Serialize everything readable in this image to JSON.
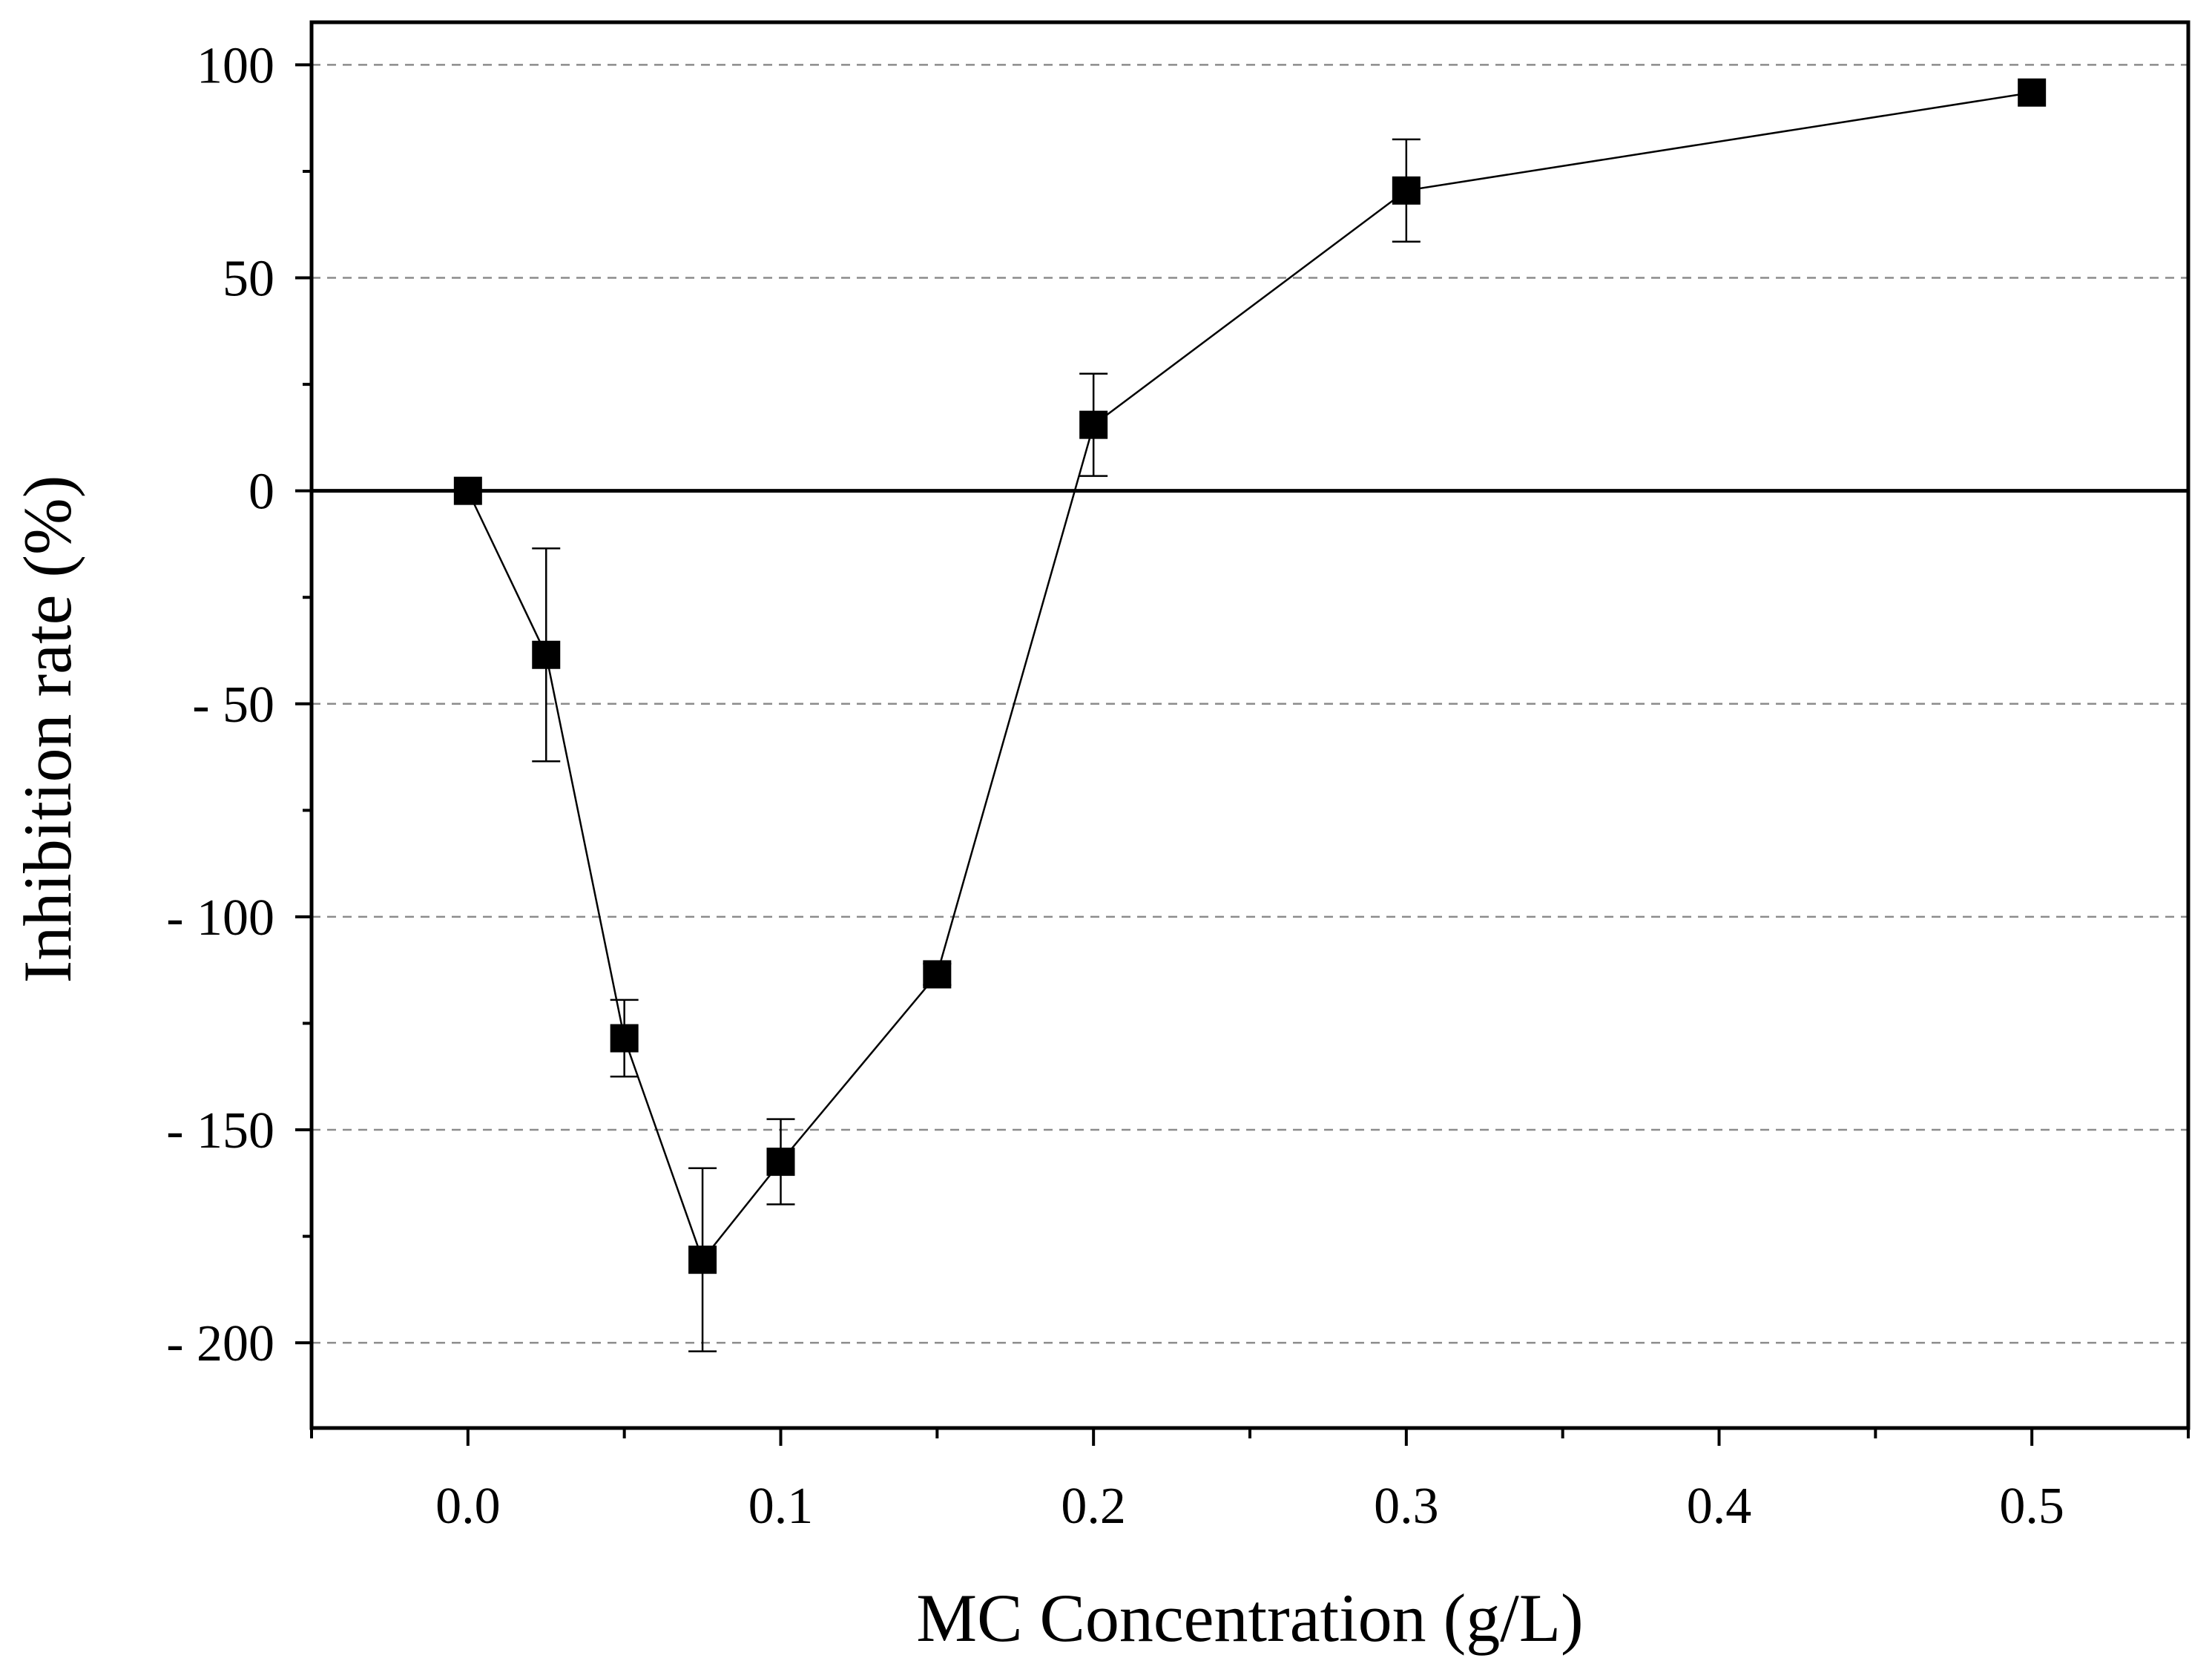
{
  "chart_data": {
    "type": "scatter",
    "title": "",
    "xlabel": "MC Concentration (g/L)",
    "ylabel": "Inhibition rate (%)",
    "xlim": [
      -0.05,
      0.55
    ],
    "ylim": [
      -220,
      110
    ],
    "x_ticks": [
      0.0,
      0.1,
      0.2,
      0.3,
      0.4,
      0.5
    ],
    "x_tick_labels": [
      "0.0",
      "0.1",
      "0.2",
      "0.3",
      "0.4",
      "0.5"
    ],
    "x_minor_ticks": [
      -0.05,
      0.05,
      0.15,
      0.25,
      0.35,
      0.45,
      0.55
    ],
    "y_ticks": [
      100,
      50,
      0,
      -50,
      -100,
      -150,
      -200
    ],
    "y_tick_labels": [
      "100",
      "50",
      "0",
      "- 50",
      "- 100",
      "- 150",
      "- 200"
    ],
    "y_minor_ticks": [
      75,
      25,
      -25,
      -75,
      -125,
      -175
    ],
    "grid": "horizontal-dashed",
    "zero_line": true,
    "series": [
      {
        "name": "Inhibition rate",
        "marker": "square",
        "line": "solid",
        "color": "#000000",
        "x": [
          0.0,
          0.025,
          0.05,
          0.075,
          0.1,
          0.15,
          0.2,
          0.3,
          0.5
        ],
        "y": [
          0,
          -38.5,
          -128.5,
          -180.5,
          -157.5,
          -113.5,
          15.5,
          70.5,
          93.5
        ],
        "err_low": [
          0,
          25,
          9,
          21.5,
          10,
          2.5,
          12,
          12,
          0
        ],
        "err_high": [
          0,
          25,
          9,
          21.5,
          10,
          2.5,
          12,
          12,
          0
        ]
      }
    ]
  },
  "colors": {
    "axis": "#000000",
    "grid": "#8c8c8c",
    "marker": "#000000",
    "background": "#ffffff"
  }
}
